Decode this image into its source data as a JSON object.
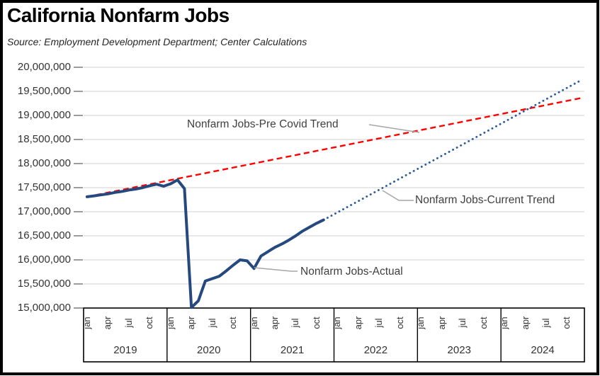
{
  "chart_data": {
    "type": "line",
    "title": "California Nonfarm Jobs",
    "source": "Source:  Employment Development Department; Center Calculations",
    "ylabel": "",
    "xlabel": "",
    "grid": "horizontal",
    "legend_position": "inline-annotations",
    "y_axis": {
      "min": 15000000,
      "max": 20000000,
      "tick_interval": 500000,
      "tick_labels": [
        "20,000,000",
        "19,500,000",
        "19,000,000",
        "18,500,000",
        "18,000,000",
        "17,500,000",
        "17,000,000",
        "16,500,000",
        "16,000,000",
        "15,500,000",
        "15,000,000"
      ]
    },
    "x_axis": {
      "month_labels": [
        "jan",
        "apr",
        "jul",
        "oct"
      ],
      "years": [
        "2019",
        "2020",
        "2021",
        "2022",
        "2023",
        "2024"
      ]
    },
    "series": [
      {
        "name": "Nonfarm Jobs-Pre Covid Trend",
        "kind": "linear-trend",
        "style": "dashed",
        "color": "#FF0000",
        "start_period": "Jan 2019",
        "start_value": 17310000,
        "end_period": "Dec 2024",
        "end_value": 19360000
      },
      {
        "name": "Nonfarm Jobs-Current Trend",
        "kind": "linear-trend",
        "style": "dotted",
        "color": "#2E5C9C",
        "start_period": "Nov 2021",
        "start_value": 16830000,
        "end_period": "Dec 2024",
        "end_value": 19730000
      },
      {
        "name": "Nonfarm Jobs-Actual",
        "kind": "monthly",
        "style": "solid",
        "color": "#25497F",
        "start_period": "Jan 2019",
        "values": [
          17310000,
          17330000,
          17350000,
          17370000,
          17400000,
          17420000,
          17450000,
          17470000,
          17500000,
          17540000,
          17570000,
          17530000,
          17580000,
          17660000,
          17480000,
          15010000,
          15150000,
          15560000,
          15610000,
          15660000,
          15770000,
          15890000,
          16000000,
          15980000,
          15820000,
          16080000,
          16170000,
          16260000,
          16330000,
          16410000,
          16500000,
          16600000,
          16680000,
          16760000,
          16830000
        ]
      }
    ],
    "annotation_colors": {
      "leader_line": "#A6A6A6"
    }
  }
}
